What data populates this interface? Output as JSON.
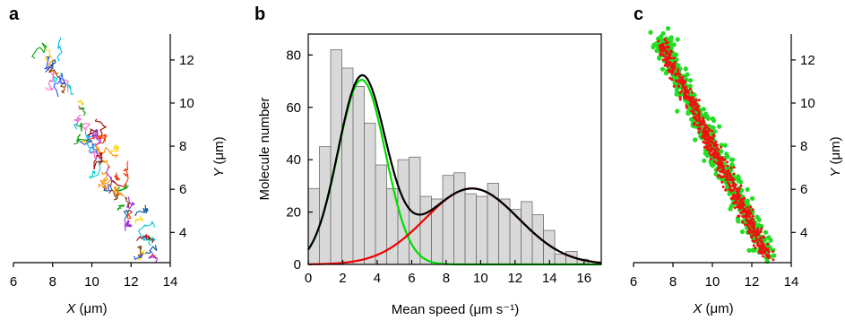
{
  "chart_data": [
    {
      "panel": "a",
      "type": "scatter",
      "title": "",
      "xlabel_var": "X",
      "xlabel_unit": "(μm)",
      "ylabel_var": "Y",
      "ylabel_unit": "(μm)",
      "xlim": [
        6,
        14
      ],
      "ylim": [
        2.6,
        13.2
      ],
      "xticks": [
        6,
        8,
        10,
        12,
        14
      ],
      "yticks": [
        4,
        6,
        8,
        10,
        12
      ],
      "y_axis_side": "right",
      "description_series": "single-molecule trajectories, multicolored by track",
      "track_band": {
        "x": [
          7.3,
          13.0
        ],
        "y": [
          13.0,
          3.0
        ]
      }
    },
    {
      "panel": "b",
      "type": "bar",
      "title": "",
      "xlabel": "Mean speed (μm s⁻¹)",
      "ylabel": "Molecule number",
      "xlim": [
        0,
        17
      ],
      "ylim": [
        0,
        88
      ],
      "xticks": [
        0,
        2,
        4,
        6,
        8,
        10,
        12,
        14,
        16
      ],
      "yticks": [
        0,
        20,
        40,
        60,
        80
      ],
      "bin_width": 0.65,
      "bins_start": [
        0,
        0.65,
        1.3,
        1.95,
        2.6,
        3.25,
        3.9,
        4.55,
        5.2,
        5.85,
        6.5,
        7.15,
        7.8,
        8.45,
        9.1,
        9.75,
        10.4,
        11.05,
        11.7,
        12.35,
        13.0,
        13.65,
        14.3,
        14.95,
        15.6,
        16.25
      ],
      "values": [
        29,
        45,
        82,
        75,
        68,
        54,
        38,
        29,
        40,
        41,
        26,
        25,
        34,
        35,
        27,
        26,
        31,
        25,
        21,
        24,
        19,
        13,
        4,
        5,
        2,
        0
      ],
      "series": [
        {
          "kind": "fit",
          "name": "",
          "color": "#00dd00",
          "gaussian": {
            "amplitude": 70.5,
            "mean": 3.1,
            "sd": 1.38
          }
        },
        {
          "kind": "fit",
          "name": "",
          "color": "#ee0000",
          "gaussian": {
            "amplitude": 29.0,
            "mean": 9.5,
            "sd": 2.7
          }
        },
        {
          "kind": "fit",
          "name": "",
          "color": "#000000",
          "sum_of": [
            0,
            1
          ]
        }
      ]
    },
    {
      "panel": "c",
      "type": "scatter",
      "title": "",
      "xlabel_var": "X",
      "xlabel_unit": "(μm)",
      "ylabel_var": "Y",
      "ylabel_unit": "(μm)",
      "xlim": [
        6,
        14
      ],
      "ylim": [
        2.6,
        13.2
      ],
      "xticks": [
        6,
        8,
        10,
        12,
        14
      ],
      "yticks": [
        4,
        6,
        8,
        10,
        12
      ],
      "y_axis_side": "right",
      "series": [
        {
          "name": "",
          "color": "#22dd22"
        },
        {
          "name": "",
          "color": "#ee1111"
        }
      ],
      "track_band": {
        "x": [
          7.3,
          12.8
        ],
        "y": [
          13.0,
          2.9
        ]
      }
    }
  ]
}
